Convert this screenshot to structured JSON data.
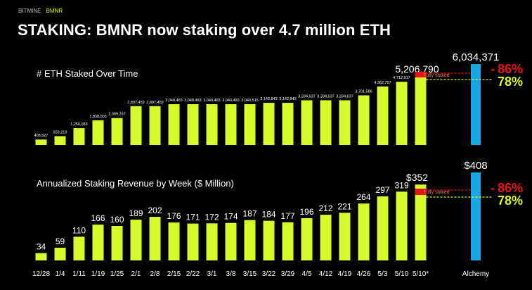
{
  "header": {
    "brand": "BITMINE",
    "brand_sep": "·",
    "brand_ticker": "BMNR",
    "title": "STAKING: BMNR now staking over 4.7 million ETH"
  },
  "colors": {
    "bar": "#d6fb2a",
    "alchemy": "#1aa6e0",
    "red": "#ee1111",
    "green": "#d6fb2a",
    "background": "#000000"
  },
  "chart_data": [
    {
      "type": "bar",
      "title": "# ETH Staked Over Time",
      "categories": [
        "12/28",
        "1/4",
        "1/11",
        "1/19",
        "1/25",
        "2/1",
        "2/8",
        "2/15",
        "2/22",
        "3/1",
        "3/8",
        "3/15",
        "3/22",
        "3/29",
        "4/5",
        "4/12",
        "4/19",
        "4/26",
        "5/3",
        "5/10",
        "5/10*"
      ],
      "values": [
        408627,
        659219,
        1256083,
        1838003,
        2009267,
        2897459,
        2897459,
        3040483,
        3040483,
        3040483,
        3040483,
        3040515,
        3142843,
        3142843,
        3334637,
        3334637,
        3334637,
        3701586,
        4362757,
        4712917,
        5206790
      ],
      "labels": [
        "408,627",
        "659,219",
        "1,256,083",
        "1,838,003",
        "2,009,267",
        "2,897,459",
        "2,897,459",
        "3,040,483",
        "3,040,483",
        "3,040,483",
        "3,040,483",
        "3,040,515",
        "3,142,843",
        "3,142,843",
        "3,334,637",
        "3,334,637",
        "3,334,637",
        "3,701,586",
        "4,362,757",
        "4,712,917",
        "5,206,790"
      ],
      "comparison": {
        "label": "Alchemy",
        "value": 6034371,
        "value_label": "6,034,371"
      },
      "annotations": {
        "fully_staked": "Fully staked",
        "pct_high": "86%",
        "pct_low": "78%"
      }
    },
    {
      "type": "bar",
      "title": "Annualized Staking Revenue by Week ($ Million)",
      "categories": [
        "12/28",
        "1/4",
        "1/11",
        "1/19",
        "1/25",
        "2/1",
        "2/8",
        "2/15",
        "2/22",
        "3/1",
        "3/8",
        "3/15",
        "3/22",
        "3/29",
        "4/5",
        "4/12",
        "4/19",
        "4/26",
        "5/3",
        "5/10",
        "5/10*"
      ],
      "values": [
        34,
        59,
        110,
        166,
        160,
        189,
        202,
        176,
        171,
        172,
        174,
        187,
        184,
        177,
        196,
        212,
        221,
        264,
        297,
        319,
        352
      ],
      "labels": [
        "34",
        "59",
        "110",
        "166",
        "160",
        "189",
        "202",
        "176",
        "171",
        "172",
        "174",
        "187",
        "184",
        "177",
        "196",
        "212",
        "221",
        "264",
        "297",
        "319",
        "$352"
      ],
      "comparison": {
        "label": "Alchemy",
        "value": 408,
        "value_label": "$408"
      },
      "annotations": {
        "fully_staked": "Fully staked",
        "pct_high": "86%",
        "pct_low": "78%"
      }
    }
  ]
}
